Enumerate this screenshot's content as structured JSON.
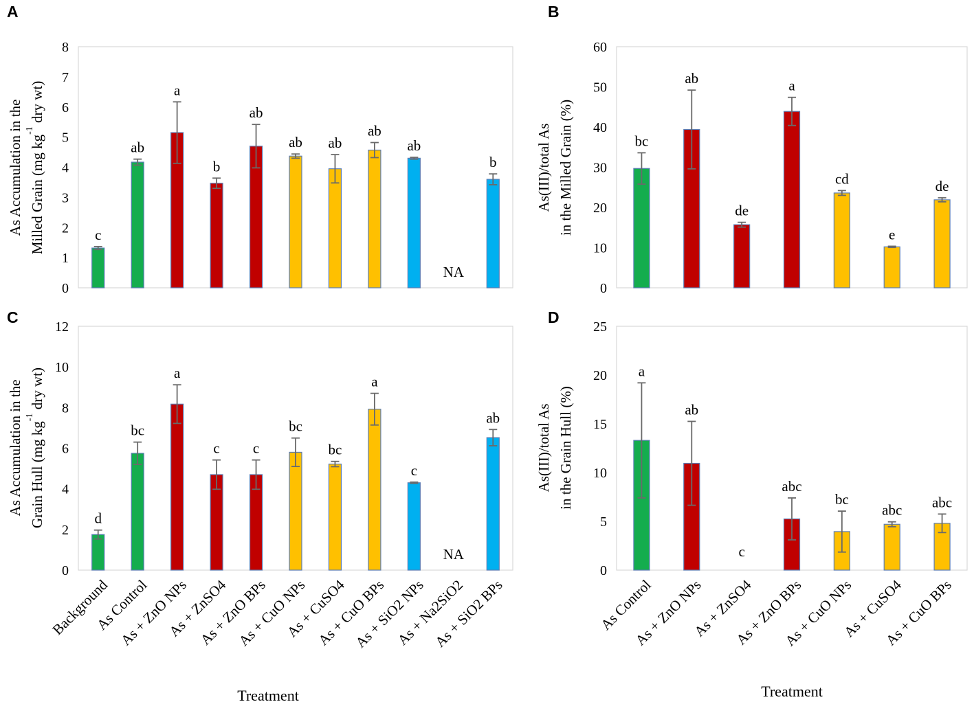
{
  "colors": {
    "green": "#14ad4e",
    "red": "#c00000",
    "yellow": "#ffc000",
    "blue": "#00b0f0",
    "bar_border": "#5b7db5",
    "axis_frame": "#d9d9d9",
    "error_bar": "#6a6a6a"
  },
  "chart_data": [
    {
      "id": "A",
      "type": "bar",
      "panel_label": "A",
      "ylabel_line1": "As Accumulation in the",
      "ylabel_line2_pre": "Milled Grain (mg kg",
      "ylabel_sup": "-1",
      "ylabel_line2_post": " dry wt)",
      "ylim": [
        0,
        8
      ],
      "yticks": [
        "0",
        "1",
        "2",
        "3",
        "4",
        "5",
        "6",
        "7",
        "8"
      ],
      "categories": [
        "Background",
        "As Control",
        "As + ZnO NPs",
        "As + ZnSO4",
        "As + ZnO BPs",
        "As + CuO NPs",
        "As + CuSO4",
        "As + CuO BPs",
        "As + SiO2 NPs",
        "As + Na2SiO2",
        "As + SiO2 BPs"
      ],
      "values": [
        1.32,
        4.17,
        5.15,
        3.47,
        4.7,
        4.37,
        3.95,
        4.57,
        4.3,
        null,
        3.6
      ],
      "errors": [
        0.05,
        0.1,
        1.02,
        0.17,
        0.72,
        0.07,
        0.47,
        0.25,
        0.03,
        null,
        0.18
      ],
      "colors": [
        "green",
        "green",
        "red",
        "red",
        "red",
        "yellow",
        "yellow",
        "yellow",
        "blue",
        "blue",
        "blue"
      ],
      "letters": [
        "c",
        "ab",
        "a",
        "b",
        "ab",
        "ab",
        "ab",
        "ab",
        "ab",
        "",
        "b"
      ],
      "na_text": "NA",
      "na_index": 9
    },
    {
      "id": "B",
      "type": "bar",
      "panel_label": "B",
      "ylabel_line1": "As(III)/total As",
      "ylabel_line2": "in the Milled Grain (%)",
      "ylim": [
        0,
        60
      ],
      "yticks": [
        "0",
        "10",
        "20",
        "30",
        "40",
        "50",
        "60"
      ],
      "categories": [
        "As Control",
        "As + ZnO NPs",
        "As + ZnSO4",
        "As + ZnO BPs",
        "As + CuO NPs",
        "As + CuSO4",
        "As + CuO BPs"
      ],
      "values": [
        29.7,
        39.4,
        15.7,
        43.9,
        23.6,
        10.2,
        21.9
      ],
      "errors": [
        3.9,
        9.8,
        0.6,
        3.5,
        0.6,
        0.15,
        0.5
      ],
      "colors": [
        "green",
        "red",
        "red",
        "red",
        "yellow",
        "yellow",
        "yellow"
      ],
      "letters": [
        "bc",
        "ab",
        "de",
        "a",
        "cd",
        "e",
        "de"
      ]
    },
    {
      "id": "C",
      "type": "bar",
      "panel_label": "C",
      "ylabel_line1": "As Accumulation in the",
      "ylabel_line2_pre": "Grain Hull (mg kg",
      "ylabel_sup": "-1",
      "ylabel_line2_post": "  dry wt)",
      "ylim": [
        0,
        12
      ],
      "yticks": [
        "0",
        "2",
        "4",
        "6",
        "8",
        "10",
        "12"
      ],
      "categories": [
        "Background",
        "As Control",
        "As + ZnO NPs",
        "As + ZnSO4",
        "As + ZnO BPs",
        "As + CuO NPs",
        "As + CuSO4",
        "As + CuO BPs",
        "As + SiO2 NPs",
        "As + Na2SiO2",
        "As + SiO2 BPs"
      ],
      "values": [
        1.75,
        5.75,
        8.17,
        4.7,
        4.7,
        5.8,
        5.22,
        7.92,
        4.3,
        null,
        6.52
      ],
      "errors": [
        0.22,
        0.55,
        0.95,
        0.72,
        0.72,
        0.7,
        0.13,
        0.78,
        0.03,
        null,
        0.4
      ],
      "colors": [
        "green",
        "green",
        "red",
        "red",
        "red",
        "yellow",
        "yellow",
        "yellow",
        "blue",
        "blue",
        "blue"
      ],
      "letters": [
        "d",
        "bc",
        "a",
        "c",
        "c",
        "bc",
        "bc",
        "a",
        "c",
        "",
        "ab"
      ],
      "na_text": "NA",
      "na_index": 9,
      "xlabel": "Treatment"
    },
    {
      "id": "D",
      "type": "bar",
      "panel_label": "D",
      "ylabel_line1": "As(III)/total As",
      "ylabel_line2": "in the Grain Hull (%)",
      "ylim": [
        0,
        25
      ],
      "yticks": [
        "0",
        "5",
        "10",
        "15",
        "20",
        "25"
      ],
      "categories": [
        "As Control",
        "As + ZnO NPs",
        "As + ZnSO4",
        "As + ZnO BPs",
        "As + CuO NPs",
        "As + CuSO4",
        "As + CuO BPs"
      ],
      "values": [
        13.3,
        10.95,
        null,
        5.25,
        3.95,
        4.7,
        4.8
      ],
      "errors": [
        5.9,
        4.3,
        null,
        2.15,
        2.1,
        0.25,
        0.95
      ],
      "colors": [
        "green",
        "red",
        "red",
        "red",
        "yellow",
        "yellow",
        "yellow"
      ],
      "letters": [
        "a",
        "ab",
        "c",
        "abc",
        "bc",
        "abc",
        "abc"
      ],
      "xlabel": "Treatment"
    }
  ]
}
